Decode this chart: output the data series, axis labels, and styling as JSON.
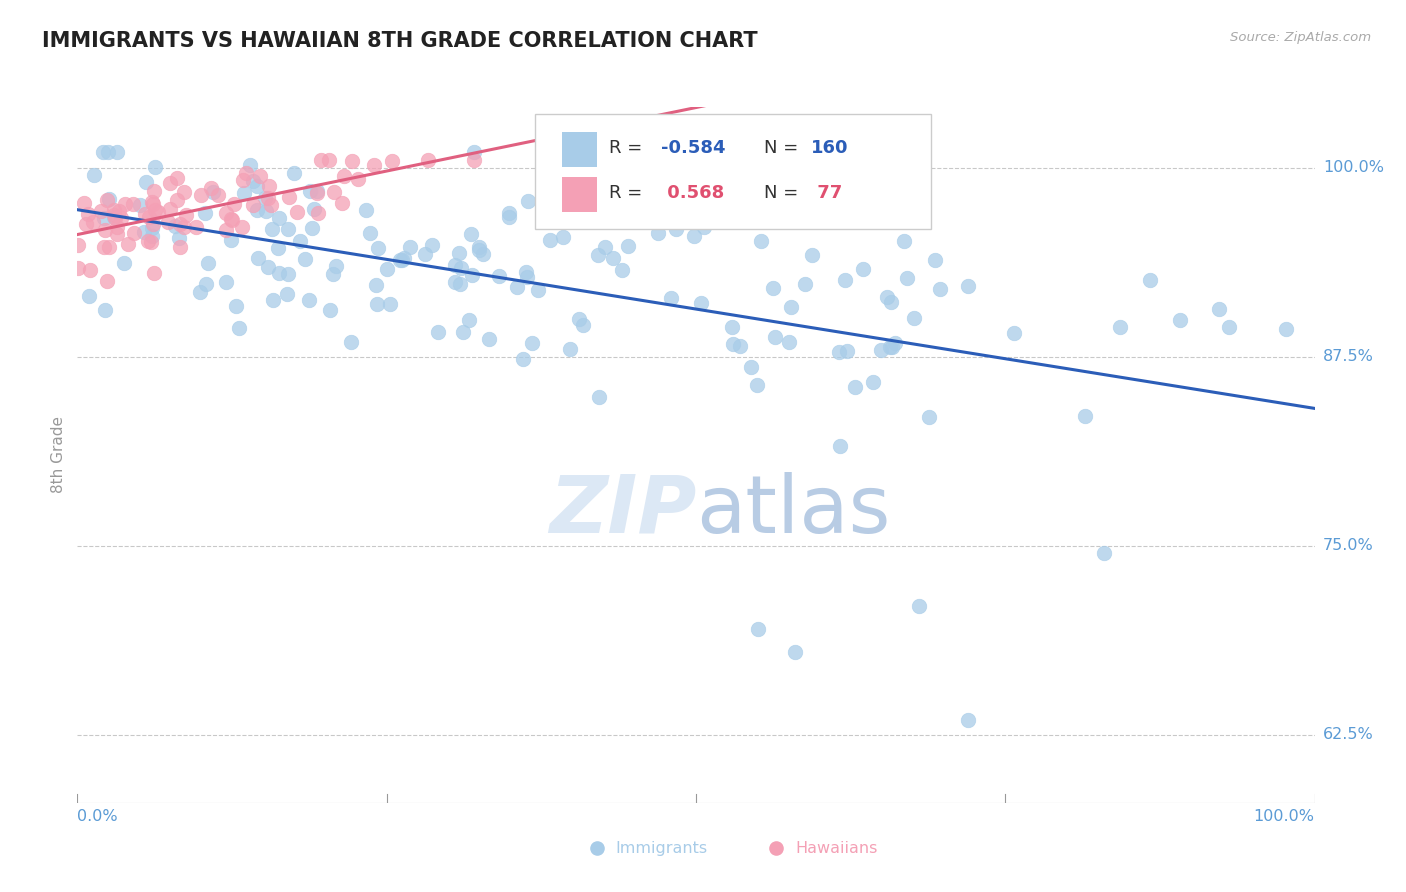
{
  "title": "IMMIGRANTS VS HAWAIIAN 8TH GRADE CORRELATION CHART",
  "source": "Source: ZipAtlas.com",
  "ylabel": "8th Grade",
  "ylabel_right_ticks": [
    "100.0%",
    "87.5%",
    "75.0%",
    "62.5%"
  ],
  "ylabel_right_vals": [
    1.0,
    0.875,
    0.75,
    0.625
  ],
  "immigrants_R": -0.584,
  "immigrants_N": 160,
  "hawaiians_R": 0.568,
  "hawaiians_N": 77,
  "blue_scatter_color": "#a8cce8",
  "blue_line_color": "#2b5db8",
  "pink_scatter_color": "#f4a0b5",
  "pink_line_color": "#e06080",
  "background_color": "#ffffff",
  "grid_color": "#bbbbbb",
  "title_color": "#222222",
  "axis_tick_color": "#5b9bd5",
  "watermark_color": "#dce8f5",
  "x_range": [
    0.0,
    1.0
  ],
  "y_range": [
    0.58,
    1.04
  ],
  "legend_R_color": "#e05070",
  "legend_N_color": "#2b5db8"
}
